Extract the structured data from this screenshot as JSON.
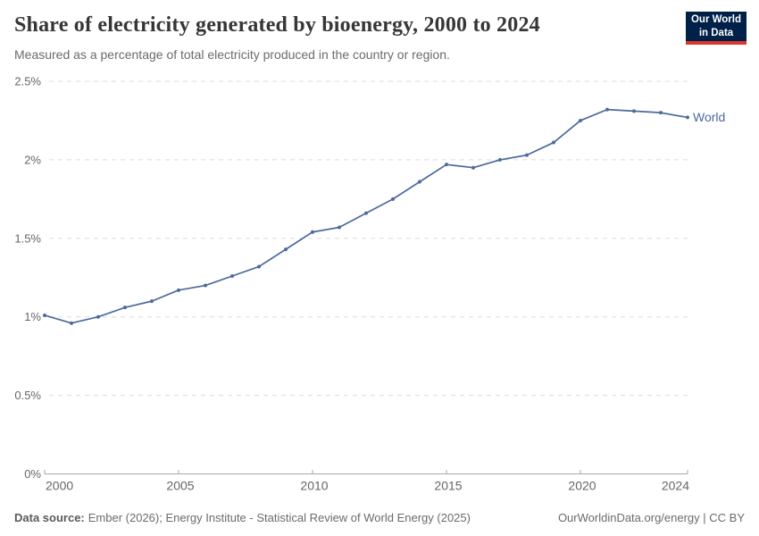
{
  "header": {
    "title": "Share of electricity generated by bioenergy, 2000 to 2024",
    "subtitle": "Measured as a percentage of total electricity produced in the country or region."
  },
  "logo": {
    "line1": "Our World",
    "line2": "in Data",
    "bg_color": "#002147",
    "stripe_color": "#dc352c"
  },
  "footer": {
    "datasource_label": "Data source:",
    "datasource_text": "Ember (2026); Energy Institute - Statistical Review of World Energy (2025)",
    "link_text": "OurWorldinData.org/energy | CC BY"
  },
  "chart_data": {
    "type": "line",
    "title": "Share of electricity generated by bioenergy, 2000 to 2024",
    "subtitle": "Measured as a percentage of total electricity produced in the country or region.",
    "xlabel": "",
    "ylabel": "",
    "xlim": [
      2000,
      2024
    ],
    "ylim": [
      0,
      2.5
    ],
    "grid": "horizontal-dashed",
    "legend_position": "end-of-line-label",
    "x_ticks": [
      2000,
      2005,
      2010,
      2015,
      2020,
      2024
    ],
    "y_ticks": [
      {
        "value": 0,
        "label": "0%"
      },
      {
        "value": 0.5,
        "label": "0.5%"
      },
      {
        "value": 1,
        "label": "1%"
      },
      {
        "value": 1.5,
        "label": "1.5%"
      },
      {
        "value": 2,
        "label": "2%"
      },
      {
        "value": 2.5,
        "label": "2.5%"
      }
    ],
    "series": [
      {
        "name": "World",
        "color": "#4c6a9c",
        "x": [
          2000,
          2001,
          2002,
          2003,
          2004,
          2005,
          2006,
          2007,
          2008,
          2009,
          2010,
          2011,
          2012,
          2013,
          2014,
          2015,
          2016,
          2017,
          2018,
          2019,
          2020,
          2021,
          2022,
          2023,
          2024
        ],
        "values": [
          1.01,
          0.96,
          1.0,
          1.06,
          1.1,
          1.17,
          1.2,
          1.26,
          1.32,
          1.43,
          1.54,
          1.57,
          1.66,
          1.75,
          1.86,
          1.97,
          1.95,
          2.0,
          2.03,
          2.11,
          2.25,
          2.32,
          2.31,
          2.3,
          2.27
        ]
      }
    ],
    "axis_color": "#a8a8a8",
    "grid_color": "#dcdcdc",
    "tick_text_color": "#666666"
  }
}
